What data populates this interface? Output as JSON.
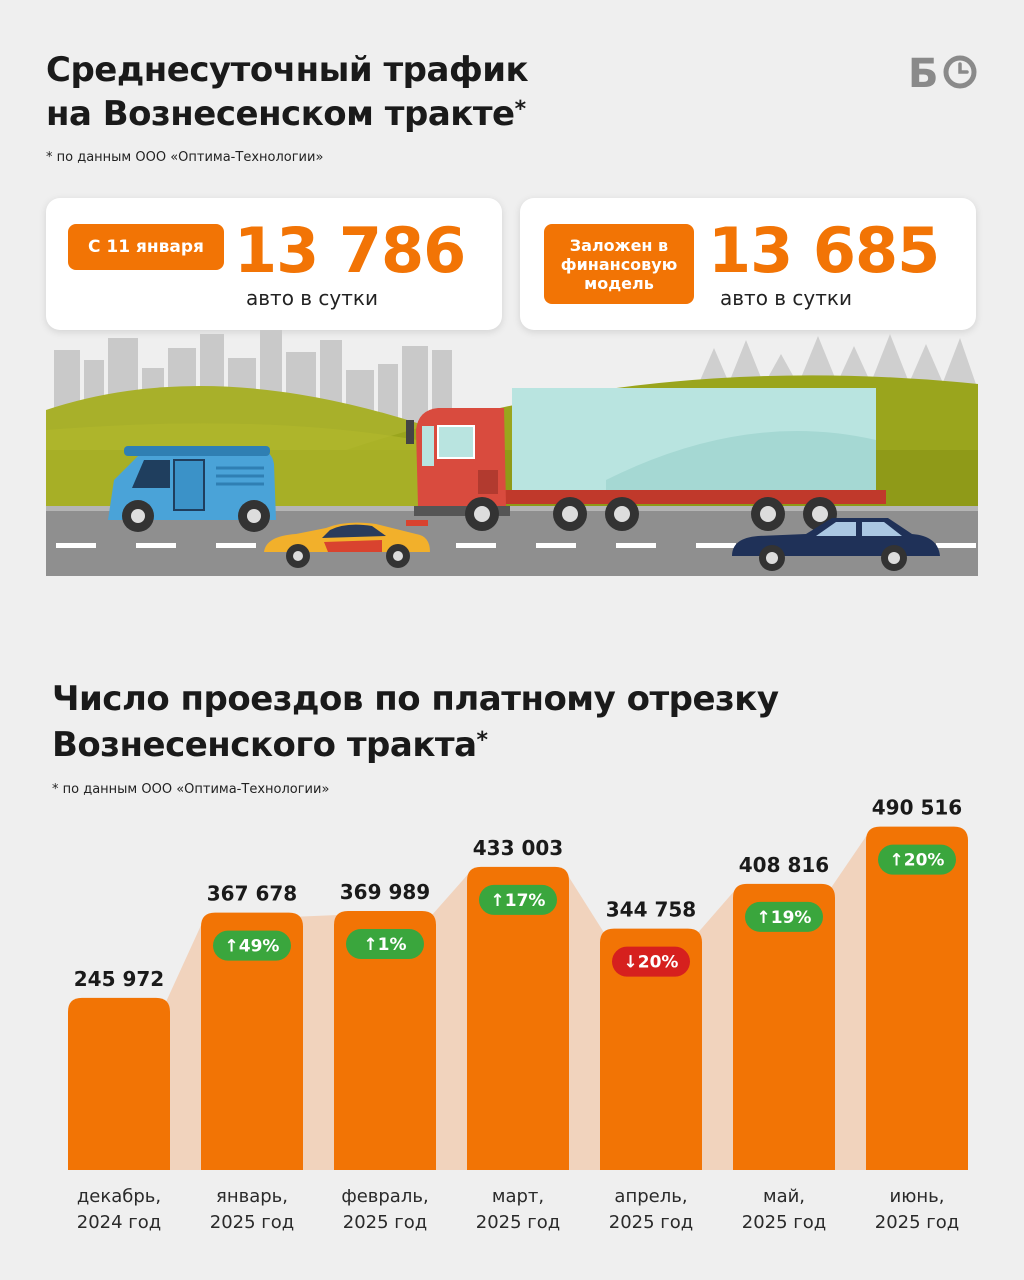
{
  "header": {
    "title_line1": "Среднесуточный трафик",
    "title_line2": "на Вознесенском тракте",
    "title_mark": "*",
    "note": "* по данным ООО «Оптима-Технологии»",
    "logo_text": "БО"
  },
  "cards": [
    {
      "label": "С 11 января",
      "value": "13 786",
      "unit": "авто в сутки"
    },
    {
      "label_lines": [
        "Заложен в",
        "финансовую",
        "модель"
      ],
      "value": "13 685",
      "unit": "авто в сутки"
    }
  ],
  "section2": {
    "title_line1": "Число проездов по платному отрезку",
    "title_line2": "Вознесенского тракта",
    "title_mark": "*",
    "note": "* по данным ООО «Оптима-Технологии»"
  },
  "colors": {
    "accent": "#f27405",
    "up": "#3aa63d",
    "down": "#d6201e",
    "band": "#f1d3bd",
    "background": "#efefef"
  },
  "chart_data": {
    "type": "bar",
    "categories": [
      [
        "декабрь,",
        "2024 год"
      ],
      [
        "январь,",
        "2025 год"
      ],
      [
        "февраль,",
        "2025 год"
      ],
      [
        "март,",
        "2025 год"
      ],
      [
        "апрель,",
        "2025 год"
      ],
      [
        "май,",
        "2025 год"
      ],
      [
        "июнь,",
        "2025 год"
      ]
    ],
    "values": [
      245972,
      367678,
      369989,
      433003,
      344758,
      408816,
      490516
    ],
    "value_labels": [
      "245 972",
      "367 678",
      "369 989",
      "433 003",
      "344 758",
      "408 816",
      "490 516"
    ],
    "changes": [
      null,
      "↑49%",
      "↑1%",
      "↑17%",
      "↓20%",
      "↑19%",
      "↑20%"
    ],
    "change_direction": [
      null,
      "up",
      "up",
      "up",
      "down",
      "up",
      "up"
    ],
    "ylim": [
      0,
      500000
    ],
    "grid": false,
    "legend": "none"
  }
}
